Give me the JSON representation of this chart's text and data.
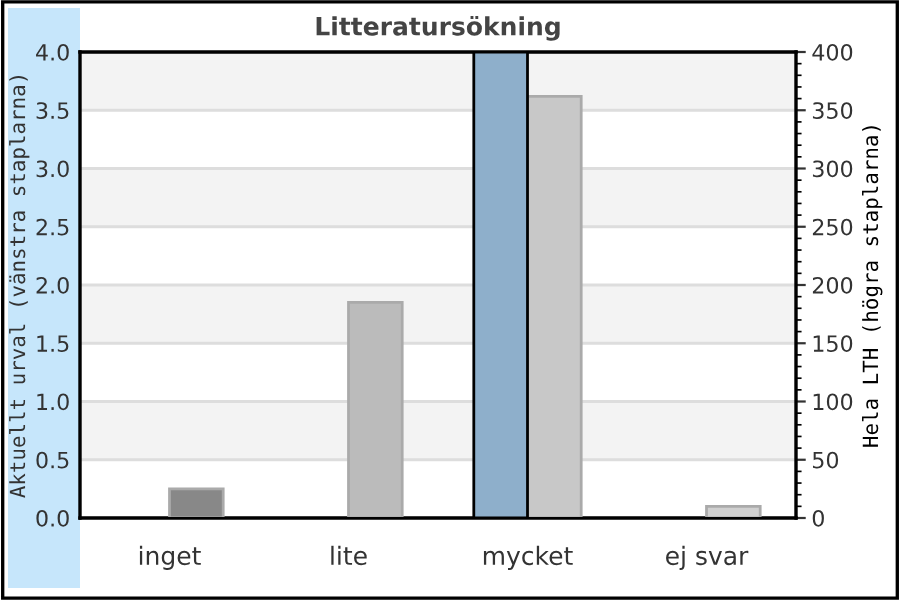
{
  "chart_data": {
    "type": "bar",
    "title": "Litteratursökning",
    "categories": [
      "inget",
      "lite",
      "mycket",
      "ej svar"
    ],
    "ylabel": "Aktuellt urval (vänstra staplarna)",
    "y2label": "Hela LTH (högra staplarna)",
    "series": [
      {
        "color": "#8eafcb",
        "values": [
          0,
          0,
          4.0,
          0
        ]
      },
      {
        "axis": "y2",
        "colors": [
          "#888888",
          "#bbbbbb",
          "#c8c8c8",
          "#d0d0d0"
        ],
        "values": [
          25,
          185,
          362,
          10
        ]
      }
    ],
    "ylim": [
      0,
      4.0
    ],
    "yticks": [
      {
        "value": 0,
        "label": "0.0"
      },
      {
        "value": 0.5,
        "label": "0.5"
      },
      {
        "value": 1,
        "label": "1.0"
      },
      {
        "value": 1.5,
        "label": "1.5"
      },
      {
        "value": 2,
        "label": "2.0"
      },
      {
        "value": 2.5,
        "label": "2.5"
      },
      {
        "value": 3,
        "label": "3.0"
      },
      {
        "value": 3.5,
        "label": "3.5"
      },
      {
        "value": 4,
        "label": "4.0"
      }
    ],
    "y2lim": [
      0,
      400
    ],
    "y2ticks": [
      0,
      50,
      100,
      150,
      200,
      250,
      300,
      350,
      400
    ],
    "grid": "y",
    "legend": false
  }
}
